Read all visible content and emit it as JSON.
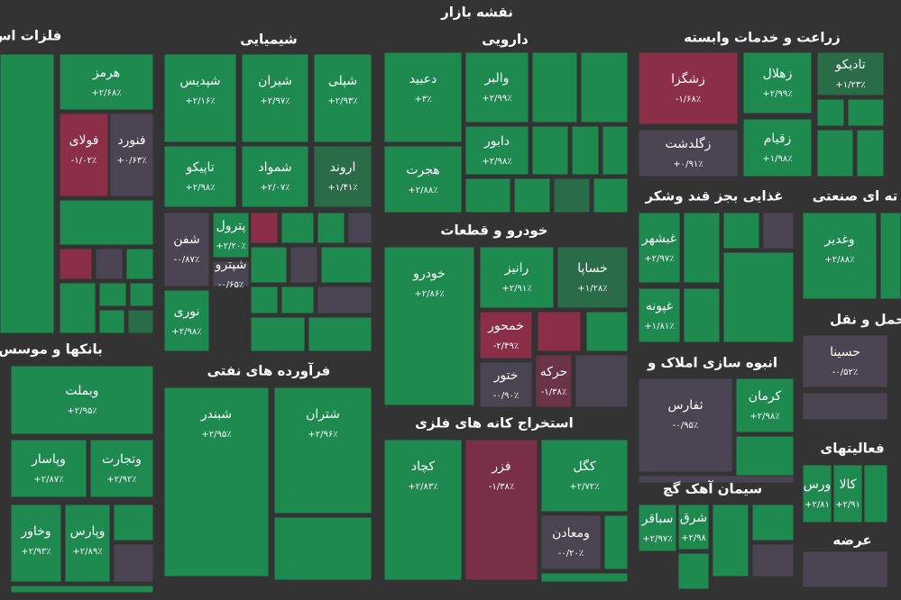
{
  "title": "نقشه بازار",
  "sectors": [
    {
      "name": "فلزات اس",
      "tiles": [
        {
          "name": "هرمز",
          "change": "+۲/۶۸٪",
          "color": "#1f8a50"
        },
        {
          "name": "فولای",
          "change": "-۱/۰۲٪",
          "color": "#8a2f47"
        },
        {
          "name": "فنورد",
          "change": "+۰/۶۳٪",
          "color": "#4b4452"
        }
      ]
    },
    {
      "name": "شیمیایی",
      "tiles": [
        {
          "name": "شپدیس",
          "change": "+۲/۱۶٪",
          "color": "#1f8a50"
        },
        {
          "name": "شیران",
          "change": "+۲/۹۷٪",
          "color": "#1f8a50"
        },
        {
          "name": "شپلی",
          "change": "+۲/۹۳٪",
          "color": "#1f8a50"
        },
        {
          "name": "تاپیکو",
          "change": "+۲/۹۸٪",
          "color": "#1f8a50"
        },
        {
          "name": "شمواد",
          "change": "+۲/۰۷٪",
          "color": "#1f8a50"
        },
        {
          "name": "اروند",
          "change": "+۱/۴۱٪",
          "color": "#2a6b48"
        },
        {
          "name": "شفن",
          "change": "-۰/۸۷٪",
          "color": "#4b4452"
        },
        {
          "name": "پترول",
          "change": "+۲/۲۰٪",
          "color": "#1f8a50"
        },
        {
          "name": "شپترو",
          "change": "-۰/۶۵٪",
          "color": "#4b4452"
        },
        {
          "name": "نوری",
          "change": "+۲/۹۸٪",
          "color": "#1f8a50"
        }
      ]
    },
    {
      "name": "دارویی",
      "tiles": [
        {
          "name": "دعبید",
          "change": "+۳٪",
          "color": "#1f8a50"
        },
        {
          "name": "هجرت",
          "change": "+۲/۸۸٪",
          "color": "#1f8a50"
        },
        {
          "name": "والبر",
          "change": "+۲/۹۹٪",
          "color": "#1f8a50"
        },
        {
          "name": "دابور",
          "change": "+۲/۹۸٪",
          "color": "#1f8a50"
        }
      ]
    },
    {
      "name": "زراعت و خدمات وابسته",
      "tiles": [
        {
          "name": "زشگزا",
          "change": "-۱/۶۸٪",
          "color": "#8a2f47"
        },
        {
          "name": "زهلال",
          "change": "+۲/۹۹٪",
          "color": "#1f8a50"
        },
        {
          "name": "تادیکو",
          "change": "+۱/۲۳٪",
          "color": "#2a6b48"
        },
        {
          "name": "زگلدشت",
          "change": "+۰/۹۱٪",
          "color": "#4b4452"
        },
        {
          "name": "زقیام",
          "change": "+۱/۹۸٪",
          "color": "#1f8a50"
        }
      ]
    },
    {
      "name": "غذایی بجز قند وشکر",
      "tiles": [
        {
          "name": "غبشهر",
          "change": "+۲/۹۷٪",
          "color": "#1f8a50"
        },
        {
          "name": "غپونه",
          "change": "+۱/۸۱٪",
          "color": "#1f8a50"
        }
      ]
    },
    {
      "name": "ته ای صنعتی",
      "tiles": [
        {
          "name": "وغدیر",
          "change": "+۲/۸۸٪",
          "color": "#1f8a50"
        }
      ]
    },
    {
      "name": "خودرو و قطعات",
      "tiles": [
        {
          "name": "خودرو",
          "change": "+۲/۸۶٪",
          "color": "#1f8a50"
        },
        {
          "name": "رانیز",
          "change": "+۲/۹۱٪",
          "color": "#1f8a50"
        },
        {
          "name": "خساپا",
          "change": "+۱/۲۸٪",
          "color": "#2a6b48"
        },
        {
          "name": "خمحور",
          "change": "-۲/۴۹٪",
          "color": "#8a2f47"
        },
        {
          "name": "ختور",
          "change": "-۰/۹۰٪",
          "color": "#4b4452"
        },
        {
          "name": "حرکه",
          "change": "-۱/۳۸٪",
          "color": "#6a3348"
        }
      ]
    },
    {
      "name": "حمل و نقل",
      "tiles": [
        {
          "name": "حسینا",
          "change": "-۰/۵۲٪",
          "color": "#4b4452"
        }
      ]
    },
    {
      "name": "بانکها و موسس",
      "tiles": [
        {
          "name": "وبملت",
          "change": "+۲/۹۵٪",
          "color": "#1f8a50"
        },
        {
          "name": "وپاسار",
          "change": "+۲/۸۷٪",
          "color": "#1f8a50"
        },
        {
          "name": "وتجارت",
          "change": "+۲/۹۲٪",
          "color": "#1f8a50"
        },
        {
          "name": "وخاور",
          "change": "+۲/۹۳٪",
          "color": "#1f8a50"
        },
        {
          "name": "وپارس",
          "change": "+۲/۸۹٪",
          "color": "#1f8a50"
        }
      ]
    },
    {
      "name": "فرآورده های نفتی",
      "tiles": [
        {
          "name": "شبندر",
          "change": "+۲/۹۵٪",
          "color": "#1f8a50"
        },
        {
          "name": "شتران",
          "change": "+۲/۹۶٪",
          "color": "#1f8a50"
        }
      ]
    },
    {
      "name": "انبوه سازی املاک و",
      "tiles": [
        {
          "name": "ثفارس",
          "change": "-۰/۹۵٪",
          "color": "#4b4452"
        },
        {
          "name": "کرمان",
          "change": "+۲/۹۸٪",
          "color": "#1f8a50"
        }
      ]
    },
    {
      "name": "استخراج کانه های فلزی",
      "tiles": [
        {
          "name": "کچاد",
          "change": "+۲/۸۳٪",
          "color": "#1f8a50"
        },
        {
          "name": "فزر",
          "change": "-۱/۳۸٪",
          "color": "#7a2f48"
        },
        {
          "name": "کگل",
          "change": "+۲/۷۲٪",
          "color": "#1f8a50"
        },
        {
          "name": "ومعادن",
          "change": "-۰/۲۰٪",
          "color": "#4b4452"
        }
      ]
    },
    {
      "name": "فعالیتهای",
      "tiles": [
        {
          "name": "ورس",
          "change": "+۲/۸۱",
          "color": "#1f8a50"
        },
        {
          "name": "کالا",
          "change": "+۲/۹۱",
          "color": "#1f8a50"
        }
      ]
    },
    {
      "name": "سیمان آهک گچ",
      "tiles": [
        {
          "name": "سباقر",
          "change": "+۲/۹۷٪",
          "color": "#1f8a50"
        },
        {
          "name": "شرق",
          "change": "+۲/۹۸",
          "color": "#1f8a50"
        }
      ]
    },
    {
      "name": "عرضه",
      "tiles": []
    }
  ]
}
